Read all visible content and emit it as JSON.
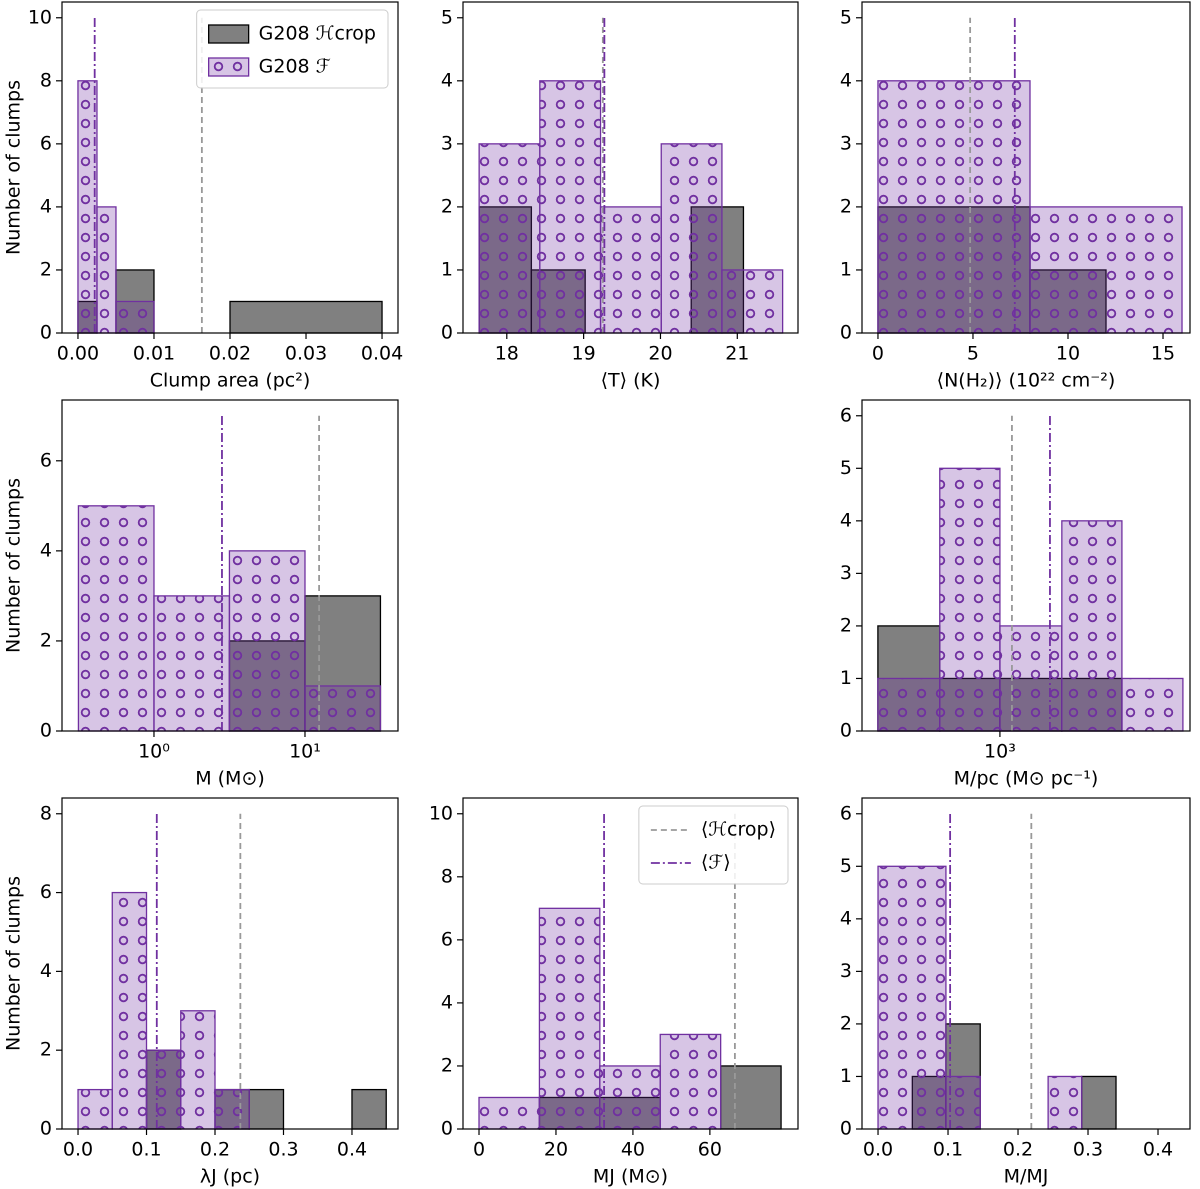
{
  "chart_data": [
    {
      "type": "histogram",
      "xlabel": "Clump area (pc²)",
      "ylabel": "Number of clumps",
      "xlim": [
        -0.0021,
        0.0421
      ],
      "ylim": [
        0,
        10.5
      ],
      "xticks": [
        {
          "value": 0,
          "label": "0.00"
        },
        {
          "value": 0.01,
          "label": "0.01"
        },
        {
          "value": 0.02,
          "label": "0.02"
        },
        {
          "value": 0.03,
          "label": "0.03"
        },
        {
          "value": 0.04,
          "label": "0.04"
        }
      ],
      "yticks": [
        0,
        2,
        4,
        6,
        8,
        10
      ],
      "series": [
        {
          "name": "G208 ℋcrop",
          "color": "#808080",
          "edgecolor": "#000000",
          "bins": [
            0,
            0.0025,
            0.005,
            0.01,
            0.02,
            0.04
          ],
          "values": [
            1,
            0,
            2,
            0,
            1
          ]
        },
        {
          "name": "G208 ℱ",
          "color": "#7030a0",
          "hatch": "o",
          "bins": [
            0,
            0.0025,
            0.005,
            0.01
          ],
          "values": [
            8,
            4,
            1
          ]
        }
      ],
      "mean_lines": [
        {
          "x": 0.0163,
          "color": "#999999",
          "dash": "dashed"
        },
        {
          "x": 0.0022,
          "color": "#7030a0",
          "dash": "dashdot"
        }
      ],
      "mean_line_top": 10,
      "legend": "upper right"
    },
    {
      "type": "histogram",
      "xlabel": "⟨T⟩ (K)",
      "xlim": [
        17.43,
        21.79
      ],
      "ylim": [
        0,
        5.25
      ],
      "xticks": [
        18,
        19,
        20,
        21
      ],
      "yticks": [
        0,
        1,
        2,
        3,
        4,
        5
      ],
      "series": [
        {
          "color": "#808080",
          "edgecolor": "#000000",
          "bins": [
            17.64,
            18.32,
            19.02,
            19.71,
            20.4,
            21.08
          ],
          "values": [
            2,
            1,
            0,
            0,
            2
          ]
        },
        {
          "color": "#7030a0",
          "hatch": "o",
          "bins": [
            17.64,
            18.43,
            19.22,
            20.01,
            20.8,
            21.59
          ],
          "values": [
            3,
            4,
            2,
            3,
            1
          ]
        }
      ],
      "mean_lines": [
        {
          "x": 19.25,
          "color": "#999999",
          "dash": "dashed"
        },
        {
          "x": 19.27,
          "color": "#7030a0",
          "dash": "dashdot"
        }
      ],
      "mean_line_top": 5
    },
    {
      "type": "histogram",
      "xlabel": "⟨N(H₂)⟩ (10²² cm⁻²)",
      "xlim": [
        -0.84,
        16.42
      ],
      "ylim": [
        0,
        5.25
      ],
      "xticks": [
        0,
        5,
        10,
        15
      ],
      "yticks": [
        0,
        1,
        2,
        3,
        4,
        5
      ],
      "series": [
        {
          "color": "#808080",
          "edgecolor": "#000000",
          "bins": [
            0,
            8,
            12
          ],
          "values": [
            2,
            1
          ]
        },
        {
          "color": "#7030a0",
          "hatch": "o",
          "bins": [
            0,
            8,
            16
          ],
          "values": [
            4,
            2
          ]
        }
      ],
      "mean_lines": [
        {
          "x": 4.85,
          "color": "#999999",
          "dash": "dashed"
        },
        {
          "x": 7.2,
          "color": "#7030a0",
          "dash": "dashdot"
        }
      ],
      "mean_line_top": 5
    },
    {
      "type": "histogram",
      "xlabel": "M (M⊙)",
      "ylabel": "Number of clumps",
      "xscale": "log",
      "xlim": [
        0.246,
        41.3
      ],
      "ylim": [
        0,
        7.35
      ],
      "xticks": [
        {
          "value": 1,
          "label": "10⁰"
        },
        {
          "value": 10,
          "label": "10¹"
        }
      ],
      "yticks": [
        0,
        2,
        4,
        6
      ],
      "series": [
        {
          "color": "#808080",
          "edgecolor": "#000000",
          "bins": [
            3.16,
            10,
            31.6
          ],
          "values": [
            2,
            3
          ]
        },
        {
          "color": "#7030a0",
          "hatch": "o",
          "bins": [
            0.316,
            1,
            3.16,
            10,
            31.6
          ],
          "values": [
            5,
            3,
            4,
            1
          ]
        }
      ],
      "mean_lines": [
        {
          "x": 12.4,
          "color": "#999999",
          "dash": "dashed"
        },
        {
          "x": 2.82,
          "color": "#7030a0",
          "dash": "dashdot"
        }
      ],
      "mean_line_top": 7
    },
    {
      "type": "histogram",
      "xlabel": "M/pc (M⊙ pc⁻¹)",
      "xscale": "log",
      "xlim": [
        353,
        4200
      ],
      "ylim": [
        0,
        6.3
      ],
      "xticks": [
        {
          "value": 1000,
          "label": "10³"
        }
      ],
      "yticks": [
        0,
        1,
        2,
        3,
        4,
        5,
        6
      ],
      "series": [
        {
          "color": "#808080",
          "edgecolor": "#000000",
          "bins": [
            398,
            635,
            1000,
            1596,
            2512,
            3981
          ],
          "values": [
            2,
            1,
            1,
            1,
            0
          ]
        },
        {
          "color": "#7030a0",
          "hatch": "o",
          "bins": [
            398,
            635,
            1000,
            1596,
            2512,
            3981
          ],
          "values": [
            1,
            5,
            2,
            4,
            1
          ]
        }
      ],
      "mean_lines": [
        {
          "x": 1095,
          "color": "#999999",
          "dash": "dashed"
        },
        {
          "x": 1459,
          "color": "#7030a0",
          "dash": "dashdot"
        }
      ],
      "mean_line_top": 6
    },
    {
      "type": "histogram",
      "xlabel": "λJ (pc)",
      "ylabel": "Number of clumps",
      "xlim": [
        -0.0234,
        0.4672
      ],
      "ylim": [
        0,
        8.4
      ],
      "xticks": [
        {
          "value": 0,
          "label": "0.0"
        },
        {
          "value": 0.1,
          "label": "0.1"
        },
        {
          "value": 0.2,
          "label": "0.2"
        },
        {
          "value": 0.3,
          "label": "0.3"
        },
        {
          "value": 0.4,
          "label": "0.4"
        }
      ],
      "yticks": [
        0,
        2,
        4,
        6,
        8
      ],
      "series": [
        {
          "color": "#808080",
          "edgecolor": "#000000",
          "bins": [
            0.1,
            0.15,
            0.2,
            0.25,
            0.3,
            0.35,
            0.4,
            0.45
          ],
          "values": [
            2,
            0,
            1,
            1,
            0,
            0,
            1
          ]
        },
        {
          "color": "#7030a0",
          "hatch": "o",
          "bins": [
            0,
            0.05,
            0.1,
            0.15,
            0.2,
            0.25
          ],
          "values": [
            1,
            6,
            2,
            3,
            1
          ]
        }
      ],
      "mean_lines": [
        {
          "x": 0.237,
          "color": "#999999",
          "dash": "dashed"
        },
        {
          "x": 0.115,
          "color": "#7030a0",
          "dash": "dashdot"
        }
      ],
      "mean_line_top": 8
    },
    {
      "type": "histogram",
      "xlabel": "MJ (M⊙)",
      "xlim": [
        -4.16,
        82.9
      ],
      "ylim": [
        0,
        10.5
      ],
      "xticks": [
        0,
        20,
        40,
        60
      ],
      "yticks": [
        0,
        2,
        4,
        6,
        8,
        10
      ],
      "series": [
        {
          "color": "#808080",
          "edgecolor": "#000000",
          "bins": [
            15.7,
            31.4,
            47.1,
            62.8,
            78.5
          ],
          "values": [
            1,
            1,
            0,
            2
          ]
        },
        {
          "color": "#7030a0",
          "hatch": "o",
          "bins": [
            0,
            15.7,
            31.4,
            47.1,
            62.8
          ],
          "values": [
            1,
            7,
            2,
            3
          ]
        }
      ],
      "mean_lines": [
        {
          "name": "⟨ℋcrop⟩",
          "x": 66.5,
          "color": "#999999",
          "dash": "dashed"
        },
        {
          "name": "⟨ℱ⟩",
          "x": 32.5,
          "color": "#7030a0",
          "dash": "dashdot"
        }
      ],
      "mean_line_top": 10,
      "legend": "upper right"
    },
    {
      "type": "histogram",
      "xlabel": "M/MJ",
      "xlim": [
        -0.0229,
        0.4457
      ],
      "ylim": [
        0,
        6.3
      ],
      "xticks": [
        {
          "value": 0,
          "label": "0.0"
        },
        {
          "value": 0.1,
          "label": "0.1"
        },
        {
          "value": 0.2,
          "label": "0.2"
        },
        {
          "value": 0.3,
          "label": "0.3"
        },
        {
          "value": 0.4,
          "label": "0.4"
        }
      ],
      "yticks": [
        0,
        1,
        2,
        3,
        4,
        5,
        6
      ],
      "series": [
        {
          "color": "#808080",
          "edgecolor": "#000000",
          "bins": [
            0.049,
            0.097,
            0.146,
            0.194,
            0.243,
            0.291,
            0.34
          ],
          "values": [
            1,
            2,
            0,
            0,
            0,
            1
          ]
        },
        {
          "color": "#7030a0",
          "hatch": "o",
          "bins": [
            0,
            0.097,
            0.146,
            0.243,
            0.291
          ],
          "values": [
            5,
            1,
            0,
            1
          ]
        }
      ],
      "mean_lines": [
        {
          "x": 0.219,
          "color": "#999999",
          "dash": "dashed"
        },
        {
          "x": 0.103,
          "color": "#7030a0",
          "dash": "dashdot"
        }
      ],
      "mean_line_top": 6
    }
  ]
}
